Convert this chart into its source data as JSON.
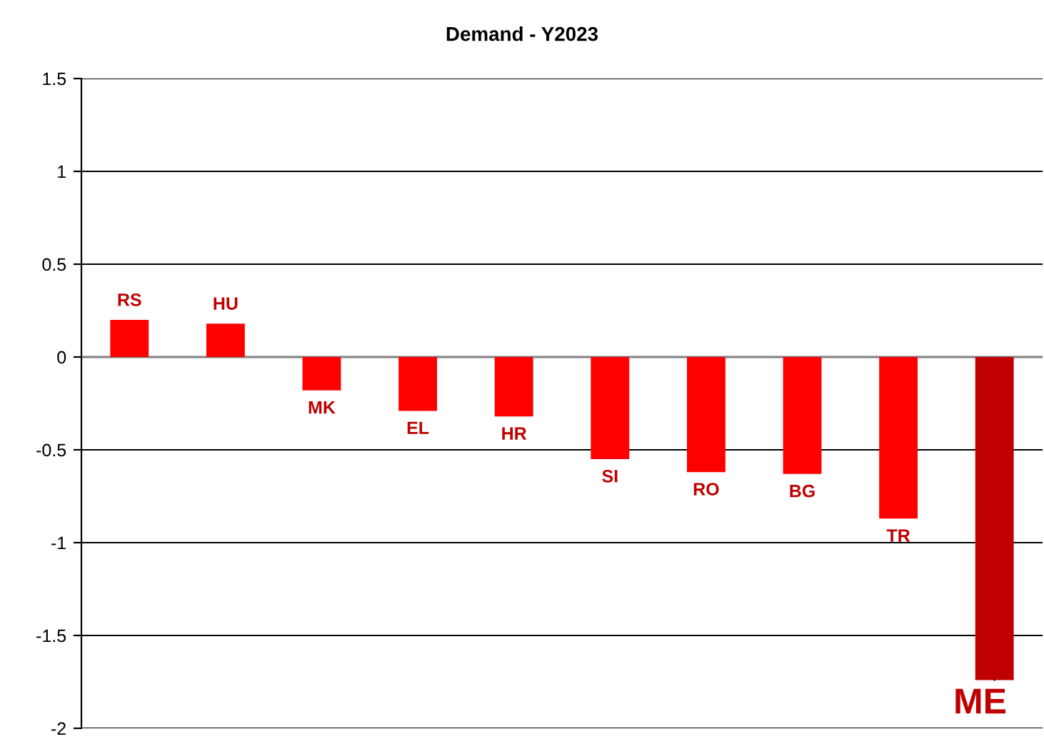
{
  "chart_data": {
    "type": "bar",
    "title": "Demand - Y2023",
    "categories": [
      "RS",
      "HU",
      "MK",
      "EL",
      "HR",
      "SI",
      "RO",
      "BG",
      "TR",
      "ME"
    ],
    "values": [
      0.2,
      0.18,
      -0.18,
      -0.29,
      -0.32,
      -0.55,
      -0.62,
      -0.63,
      -0.87,
      -1.74
    ],
    "colors": [
      "#ff0000",
      "#ff0000",
      "#ff0000",
      "#ff0000",
      "#ff0000",
      "#ff0000",
      "#ff0000",
      "#ff0000",
      "#ff0000",
      "#c00000"
    ],
    "ylim": [
      -2,
      1.5
    ],
    "yticks": [
      -2,
      -1.5,
      -1,
      -0.5,
      0,
      0.5,
      1,
      1.5
    ],
    "grid": "y",
    "tick_labels": "y"
  }
}
